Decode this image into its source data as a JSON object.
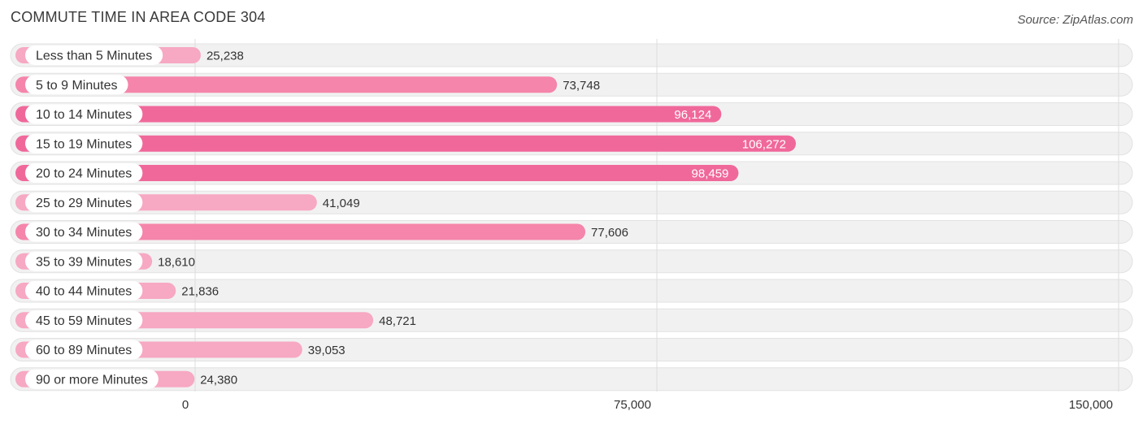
{
  "header": {
    "title": "COMMUTE TIME IN AREA CODE 304",
    "source": "Source: ZipAtlas.com"
  },
  "chart_data": {
    "type": "bar",
    "orientation": "horizontal",
    "title": "COMMUTE TIME IN AREA CODE 304",
    "categories": [
      "Less than 5 Minutes",
      "5 to 9 Minutes",
      "10 to 14 Minutes",
      "15 to 19 Minutes",
      "20 to 24 Minutes",
      "25 to 29 Minutes",
      "30 to 34 Minutes",
      "35 to 39 Minutes",
      "40 to 44 Minutes",
      "45 to 59 Minutes",
      "60 to 89 Minutes",
      "90 or more Minutes"
    ],
    "values": [
      25238,
      73748,
      96124,
      106272,
      98459,
      41049,
      77606,
      18610,
      21836,
      48721,
      39053,
      24380
    ],
    "value_labels": [
      "25,238",
      "73,748",
      "96,124",
      "106,272",
      "98,459",
      "41,049",
      "77,606",
      "18,610",
      "21,836",
      "48,721",
      "39,053",
      "24,380"
    ],
    "xlim": [
      0,
      150000
    ],
    "ticks": [
      0,
      75000,
      150000
    ],
    "tick_labels": [
      "0",
      "75,000",
      "150,000"
    ],
    "grid": true,
    "colors": {
      "bar_light": "#f7a8c3",
      "bar_mid": "#f585aa",
      "bar_strong": "#f0689a",
      "track": "#f1f1f1",
      "track_border": "#e2e2e2",
      "label_pill": "#ffffff",
      "text": "#333333",
      "value_inside": "#ffffff",
      "grid": "#dddddd"
    }
  }
}
